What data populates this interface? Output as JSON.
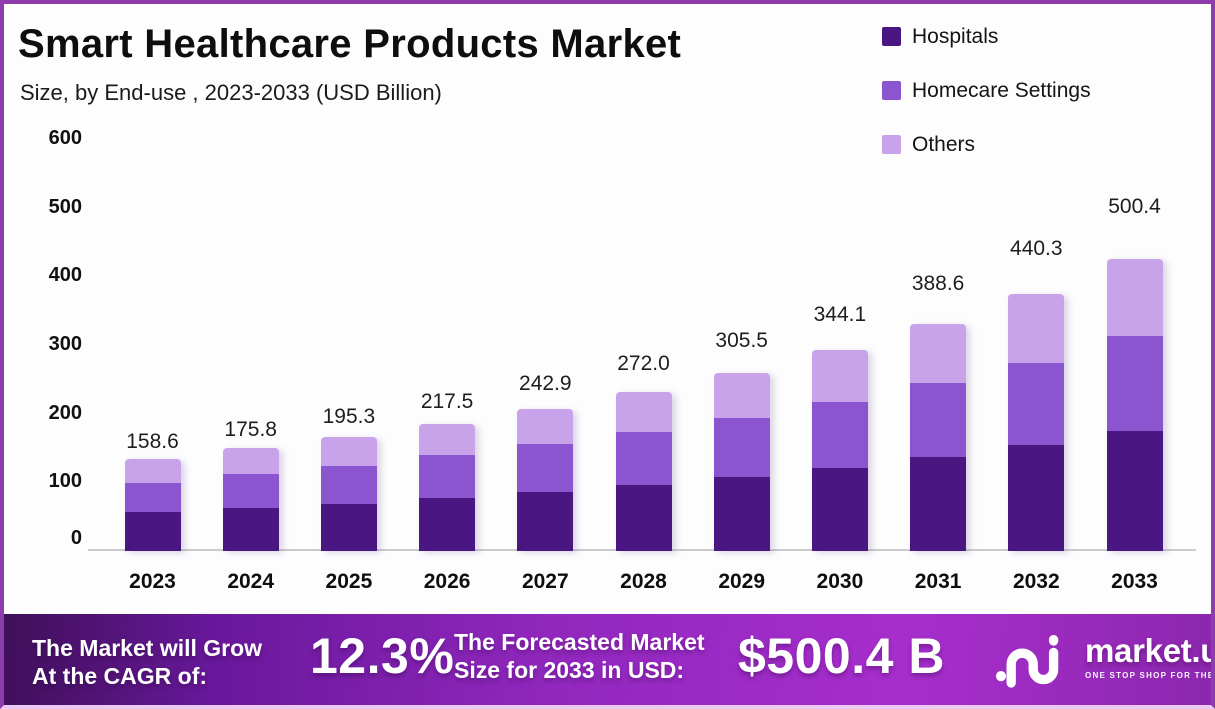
{
  "header": {
    "title": "Smart Healthcare Products Market",
    "subtitle": "Size, by End-use , 2023-2033 (USD Billion)"
  },
  "chart_data": {
    "type": "bar",
    "stacked": true,
    "title": "Smart Healthcare Products Market",
    "subtitle": "Size, by End-use , 2023-2033 (USD Billion)",
    "unit": "USD Billion",
    "categories": [
      "2023",
      "2024",
      "2025",
      "2026",
      "2027",
      "2028",
      "2029",
      "2030",
      "2031",
      "2032",
      "2033"
    ],
    "series": [
      {
        "name": "Hospitals",
        "color": "#4a1782",
        "values": [
          67.6,
          74.5,
          80.0,
          91.2,
          100.8,
          112.8,
          127.2,
          142.3,
          161.3,
          181.8,
          205.4
        ]
      },
      {
        "name": "Homecare Settings",
        "color": "#8c55d0",
        "values": [
          49.8,
          57.2,
          65.6,
          73.2,
          82.2,
          90.5,
          100.4,
          113.9,
          127.5,
          140.2,
          162.6
        ]
      },
      {
        "name": "Others",
        "color": "#c9a3ea",
        "values": [
          41.2,
          44.1,
          49.7,
          53.1,
          59.9,
          68.7,
          77.9,
          87.9,
          99.8,
          118.3,
          132.4
        ]
      }
    ],
    "totals": [
      158.6,
      175.8,
      195.3,
      217.5,
      242.9,
      272.0,
      305.5,
      344.1,
      388.6,
      440.3,
      500.4
    ],
    "total_labels": [
      "158.6",
      "175.8",
      "195.3",
      "217.5",
      "242.9",
      "272.0",
      "305.5",
      "344.1",
      "388.6",
      "440.3",
      "500.4"
    ],
    "y_ticks": [
      0,
      100,
      200,
      300,
      400,
      500,
      600
    ],
    "ylim": [
      0,
      600
    ],
    "grid": false,
    "legend_position": "top-right"
  },
  "banner": {
    "cagr_label_line1": "The Market will Grow",
    "cagr_label_line2": "At the CAGR of:",
    "cagr_value": "12.3%",
    "forecast_label_line1": "The Forecasted Market",
    "forecast_label_line2": "Size for 2033 in USD:",
    "forecast_value": "$500.4 B",
    "brand_name": "market.us",
    "brand_tagline": "ONE STOP SHOP FOR THE REPORTS"
  },
  "colors": {
    "frame_border": "#8e3bae",
    "frame_border_bottom": "#ecc9f4",
    "hospitals": "#4a1782",
    "homecare_settings": "#8c55d0",
    "others": "#c9a3ea",
    "axis_line": "#cccbcd",
    "banner_gradient_start": "#3f1059",
    "banner_gradient_mid": "#a72ecd",
    "banner_gradient_end": "#8c27ae"
  }
}
